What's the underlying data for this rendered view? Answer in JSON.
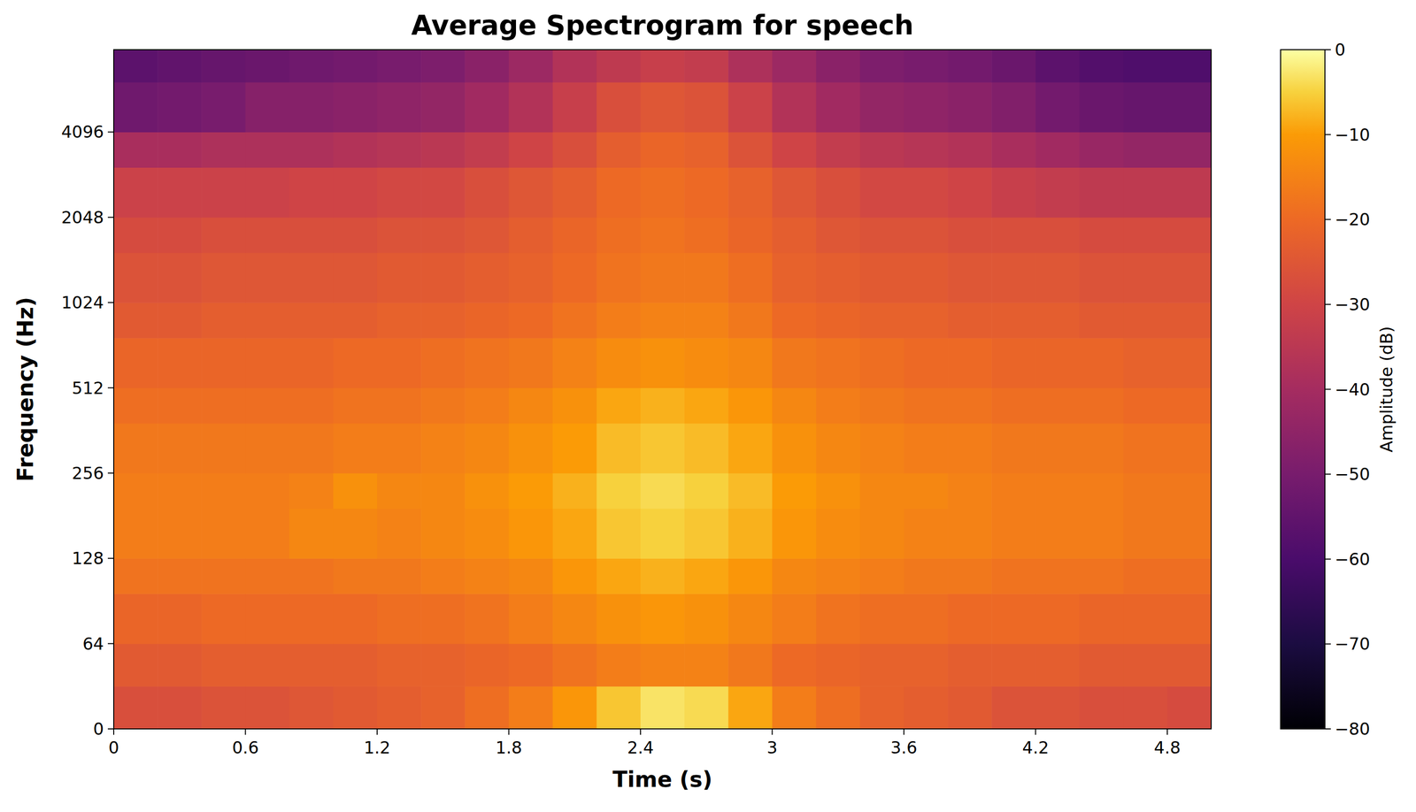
{
  "chart_data": {
    "type": "heatmap",
    "title": "Average Spectrogram for speech",
    "x_label": "Time (s)",
    "y_label": "Frequency (Hz)",
    "color": "inferno",
    "log": "y",
    "grid": false,
    "x": [
      0,
      0.2,
      0.4,
      0.6,
      0.8,
      1.0,
      1.2,
      1.4,
      1.6,
      1.8,
      2.0,
      2.2,
      2.4,
      2.6,
      2.8,
      3.0,
      3.2,
      3.4,
      3.6,
      3.8,
      4.0,
      4.2,
      4.4,
      4.6,
      4.8,
      5.0
    ],
    "y": [
      0,
      32,
      64,
      96,
      128,
      192,
      256,
      384,
      512,
      768,
      1024,
      1536,
      2048,
      3072,
      4096,
      6144,
      8000
    ],
    "xlim": [
      0,
      5.0
    ],
    "ylim": [
      0,
      8000
    ],
    "xticks": [
      0,
      0.6,
      1.2,
      1.8,
      2.4,
      3,
      3.6,
      4.2,
      4.8
    ],
    "yticks": [
      0,
      64,
      128,
      256,
      512,
      1024,
      2048,
      4096
    ],
    "values": [
      [
        -27,
        -27,
        -26,
        -26,
        -25,
        -24,
        -23,
        -22,
        -19,
        -16,
        -11,
        -6,
        -3,
        -4,
        -9,
        -16,
        -19,
        -22,
        -23,
        -24,
        -26,
        -26,
        -27,
        -27,
        -28
      ],
      [
        -24,
        -24,
        -23,
        -23,
        -23,
        -23,
        -22,
        -22,
        -21,
        -20,
        -18,
        -16,
        -15,
        -15,
        -17,
        -20,
        -21,
        -22,
        -22,
        -23,
        -23,
        -23,
        -24,
        -24,
        -24
      ],
      [
        -21,
        -21,
        -20,
        -20,
        -20,
        -20,
        -19,
        -19,
        -18,
        -16,
        -14,
        -12,
        -11,
        -12,
        -14,
        -16,
        -18,
        -19,
        -19,
        -20,
        -20,
        -20,
        -21,
        -21,
        -21
      ],
      [
        -18,
        -18,
        -18,
        -18,
        -18,
        -17,
        -17,
        -16,
        -15,
        -14,
        -11,
        -9,
        -8,
        -9,
        -11,
        -14,
        -15,
        -16,
        -17,
        -17,
        -18,
        -18,
        -18,
        -19,
        -19
      ],
      [
        -16,
        -16,
        -16,
        -16,
        -14,
        -14,
        -15,
        -14,
        -13,
        -11,
        -9,
        -6,
        -5,
        -6,
        -8,
        -11,
        -13,
        -14,
        -15,
        -15,
        -16,
        -16,
        -16,
        -17,
        -17
      ],
      [
        -16,
        -16,
        -16,
        -16,
        -15,
        -12,
        -14,
        -14,
        -12,
        -10,
        -8,
        -5,
        -4,
        -5,
        -7,
        -10,
        -12,
        -14,
        -14,
        -15,
        -16,
        -16,
        -16,
        -17,
        -17
      ],
      [
        -17,
        -17,
        -17,
        -17,
        -17,
        -16,
        -16,
        -15,
        -14,
        -12,
        -10,
        -7,
        -6,
        -7,
        -9,
        -12,
        -14,
        -15,
        -16,
        -16,
        -17,
        -17,
        -17,
        -18,
        -18
      ],
      [
        -19,
        -19,
        -19,
        -19,
        -19,
        -18,
        -18,
        -17,
        -16,
        -14,
        -12,
        -9,
        -8,
        -9,
        -11,
        -14,
        -16,
        -17,
        -18,
        -18,
        -19,
        -19,
        -19,
        -20,
        -20
      ],
      [
        -21,
        -21,
        -21,
        -21,
        -21,
        -20,
        -20,
        -19,
        -18,
        -17,
        -15,
        -13,
        -12,
        -13,
        -14,
        -17,
        -18,
        -19,
        -20,
        -20,
        -21,
        -21,
        -21,
        -22,
        -22
      ],
      [
        -24,
        -24,
        -23,
        -23,
        -23,
        -23,
        -22,
        -22,
        -21,
        -20,
        -18,
        -16,
        -15,
        -15,
        -17,
        -20,
        -21,
        -22,
        -22,
        -23,
        -23,
        -23,
        -24,
        -24,
        -24
      ],
      [
        -26,
        -26,
        -25,
        -25,
        -25,
        -25,
        -24,
        -24,
        -23,
        -22,
        -20,
        -18,
        -17,
        -17,
        -19,
        -22,
        -23,
        -24,
        -24,
        -25,
        -25,
        -25,
        -26,
        -26,
        -26
      ],
      [
        -28,
        -28,
        -27,
        -27,
        -27,
        -27,
        -26,
        -26,
        -25,
        -23,
        -21,
        -19,
        -18,
        -19,
        -21,
        -23,
        -25,
        -26,
        -26,
        -27,
        -27,
        -27,
        -28,
        -28,
        -28
      ],
      [
        -31,
        -31,
        -31,
        -31,
        -30,
        -30,
        -29,
        -29,
        -27,
        -25,
        -23,
        -20,
        -19,
        -20,
        -22,
        -25,
        -27,
        -29,
        -29,
        -30,
        -32,
        -33,
        -34,
        -34,
        -34
      ],
      [
        -39,
        -39,
        -38,
        -38,
        -38,
        -37,
        -36,
        -35,
        -33,
        -30,
        -27,
        -23,
        -21,
        -22,
        -26,
        -30,
        -33,
        -35,
        -36,
        -37,
        -39,
        -41,
        -43,
        -44,
        -44
      ],
      [
        -52,
        -51,
        -50,
        -47,
        -47,
        -46,
        -45,
        -44,
        -41,
        -37,
        -32,
        -27,
        -25,
        -26,
        -31,
        -37,
        -41,
        -44,
        -45,
        -46,
        -48,
        -51,
        -53,
        -54,
        -54
      ],
      [
        -56,
        -55,
        -54,
        -53,
        -52,
        -51,
        -50,
        -49,
        -46,
        -42,
        -37,
        -34,
        -32,
        -33,
        -38,
        -42,
        -46,
        -49,
        -50,
        -51,
        -53,
        -56,
        -58,
        -59,
        -59
      ]
    ],
    "colorbar": {
      "label": "Amplitude (dB)",
      "range": [
        -80,
        0
      ],
      "ticks": [
        0,
        {
          "value": -10,
          "label": "−10"
        },
        {
          "value": -20,
          "label": "−20"
        },
        {
          "value": -30,
          "label": "−30"
        },
        {
          "value": -40,
          "label": "−40"
        },
        {
          "value": -50,
          "label": "−50"
        },
        {
          "value": -60,
          "label": "−60"
        },
        {
          "value": -70,
          "label": "−70"
        },
        {
          "value": -80,
          "label": "−80"
        }
      ]
    }
  }
}
